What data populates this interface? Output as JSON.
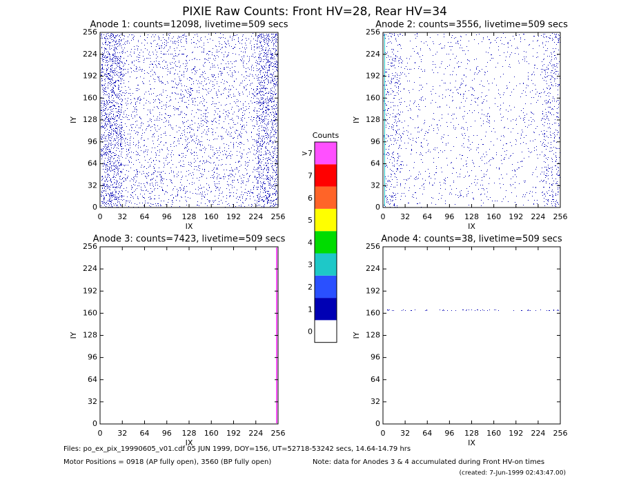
{
  "title": "PIXIE Raw Counts:  Front HV=28, Rear HV=34",
  "chart_data": [
    {
      "type": "heatmap",
      "title": "Anode 1: counts=12098, livetime=509 secs",
      "x_label": "IX",
      "y_label": "IY",
      "xlim": [
        0,
        256
      ],
      "ylim": [
        0,
        256
      ],
      "xticks": [
        0,
        32,
        64,
        96,
        128,
        160,
        192,
        224,
        256
      ],
      "yticks": [
        0,
        32,
        64,
        96,
        128,
        160,
        192,
        224,
        256
      ]
    },
    {
      "type": "heatmap",
      "title": "Anode 2: counts=3556, livetime=509 secs",
      "x_label": "IX",
      "y_label": "IY",
      "xlim": [
        0,
        256
      ],
      "ylim": [
        0,
        256
      ],
      "xticks": [
        0,
        32,
        64,
        96,
        128,
        160,
        192,
        224,
        256
      ],
      "yticks": [
        0,
        32,
        64,
        96,
        128,
        160,
        192,
        224,
        256
      ]
    },
    {
      "type": "heatmap",
      "title": "Anode 3: counts=7423, livetime=509 secs",
      "x_label": "IX",
      "y_label": "IY",
      "xlim": [
        0,
        256
      ],
      "ylim": [
        0,
        256
      ],
      "xticks": [
        0,
        32,
        64,
        96,
        128,
        160,
        192,
        224,
        256
      ],
      "yticks": [
        0,
        32,
        64,
        96,
        128,
        160,
        192,
        224,
        256
      ]
    },
    {
      "type": "heatmap",
      "title": "Anode 4: counts=38, livetime=509 secs",
      "x_label": "IX",
      "y_label": "IY",
      "xlim": [
        0,
        256
      ],
      "ylim": [
        0,
        256
      ],
      "xticks": [
        0,
        32,
        64,
        96,
        128,
        160,
        192,
        224,
        256
      ],
      "yticks": [
        0,
        32,
        64,
        96,
        128,
        160,
        192,
        224,
        256
      ]
    }
  ],
  "colorbar": {
    "title": "Counts",
    "ticks": [
      0,
      1,
      2,
      3,
      4,
      5,
      6,
      7,
      {
        "value": 8,
        "label": ">7"
      }
    ],
    "colors": [
      "#ffffff",
      "#0000b4",
      "#2a50ff",
      "#1ec8c8",
      "#00dc00",
      "#ffff00",
      "#ff6428",
      "#ff0000",
      "#ff50ff"
    ]
  },
  "footer": {
    "files": "Files: po_ex_pix_19990605_v01.cdf    05 JUN 1999, DOY=156, UT=52718-53242 secs, 14.64-14.79 hrs",
    "motor": "Motor Positions = 0918 (AP fully open), 3560 (BP fully open)",
    "note": "Note: data for Anodes 3 & 4 accumulated during Front HV-on times",
    "created": "(created:  7-Jun-1999 02:43:47.00)"
  }
}
